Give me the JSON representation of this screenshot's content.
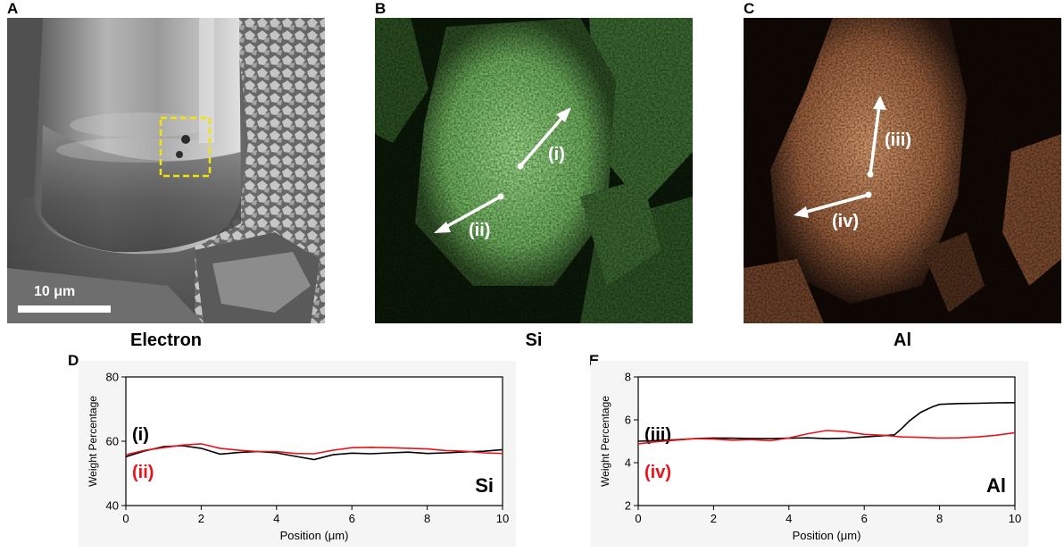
{
  "panels": {
    "a": {
      "letter": "A",
      "caption": "Electron",
      "scale_label": "10 μm",
      "scale_length_um": 10,
      "roi_color": "#f2e600"
    },
    "b": {
      "letter": "B",
      "caption": "Si",
      "map_color": "#8fd07e",
      "arrows": [
        {
          "label": "(i)"
        },
        {
          "label": "(ii)"
        }
      ]
    },
    "c": {
      "letter": "C",
      "caption": "Al",
      "map_color": "#d08a5e",
      "arrows": [
        {
          "label": "(iii)"
        },
        {
          "label": "(iv)"
        }
      ]
    }
  },
  "plot_d": {
    "letter": "D"
  },
  "plot_e": {
    "letter": "E"
  },
  "chart_data": [
    {
      "type": "line",
      "element": "Si",
      "xlabel": "Position (μm)",
      "ylabel": "Weight Percentage",
      "xlim": [
        0,
        10
      ],
      "ylim": [
        40,
        80
      ],
      "xticks": [
        0,
        2,
        4,
        6,
        8,
        10
      ],
      "yticks": [
        40,
        60,
        80
      ],
      "series": [
        {
          "name": "(i)",
          "color": "#000000",
          "x": [
            0,
            0.5,
            1,
            1.5,
            2,
            2.5,
            3,
            3.5,
            4,
            4.5,
            5,
            5.5,
            6,
            6.5,
            7,
            7.5,
            8,
            8.5,
            9,
            9.5,
            10
          ],
          "y": [
            55.2,
            57,
            58.3,
            58.6,
            57.8,
            56,
            56.5,
            56.8,
            56.4,
            55.3,
            54.3,
            55.8,
            56.3,
            56.1,
            56.4,
            56.6,
            56.2,
            56.4,
            56.7,
            56.9,
            57.4
          ]
        },
        {
          "name": "(ii)",
          "color": "#e8141a",
          "x": [
            0,
            0.5,
            1,
            1.5,
            2,
            2.5,
            3,
            3.5,
            4,
            4.5,
            5,
            5.5,
            6,
            6.5,
            7,
            7.5,
            8,
            8.5,
            9,
            9.5,
            10
          ],
          "y": [
            55.8,
            57.2,
            58,
            58.8,
            59.2,
            57.8,
            57.2,
            56.8,
            56.8,
            56.2,
            56.1,
            57.2,
            58,
            58.1,
            58,
            57.8,
            57.6,
            57.1,
            56.9,
            56.4,
            56.2
          ]
        }
      ]
    },
    {
      "type": "line",
      "element": "Al",
      "xlabel": "Position (μm)",
      "ylabel": "Weight Percentage",
      "xlim": [
        0,
        10
      ],
      "ylim": [
        2,
        8
      ],
      "xticks": [
        0,
        2,
        4,
        6,
        8,
        10
      ],
      "yticks": [
        2,
        4,
        6,
        8
      ],
      "series": [
        {
          "name": "(iii)",
          "color": "#000000",
          "x": [
            0,
            0.5,
            1,
            1.5,
            2,
            2.5,
            3,
            3.5,
            4,
            4.5,
            5,
            5.5,
            6,
            6.5,
            6.8,
            7,
            7.2,
            7.5,
            7.8,
            8,
            8.5,
            9,
            9.5,
            10
          ],
          "y": [
            5.0,
            5.03,
            5.07,
            5.12,
            5.15,
            5.14,
            5.13,
            5.12,
            5.14,
            5.16,
            5.12,
            5.14,
            5.2,
            5.26,
            5.3,
            5.6,
            5.95,
            6.35,
            6.6,
            6.72,
            6.76,
            6.77,
            6.79,
            6.8
          ]
        },
        {
          "name": "(iv)",
          "color": "#e8141a",
          "x": [
            0,
            0.5,
            1,
            1.5,
            2,
            2.5,
            3,
            3.5,
            4,
            4.5,
            5,
            5.5,
            6,
            6.5,
            7,
            7.5,
            8,
            8.5,
            9,
            9.5,
            10
          ],
          "y": [
            4.88,
            4.98,
            5.05,
            5.12,
            5.1,
            5.05,
            5.08,
            5.02,
            5.15,
            5.35,
            5.5,
            5.45,
            5.32,
            5.28,
            5.2,
            5.18,
            5.15,
            5.16,
            5.2,
            5.28,
            5.4
          ]
        }
      ]
    }
  ]
}
